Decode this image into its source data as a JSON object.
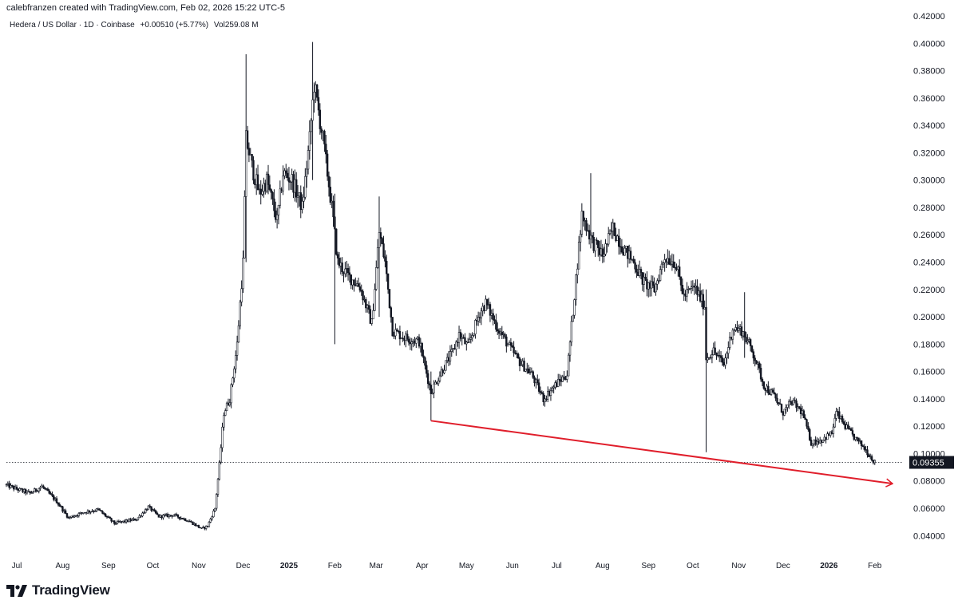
{
  "header": {
    "created_by": "calebfranzen created with TradingView.com, Feb 02, 2026 15:22 UTC-5"
  },
  "legend": {
    "symbol": "Hedera / US Dollar · 1D · Coinbase",
    "change": "+0.00510 (+5.77%)",
    "volume": "Vol259.08 M"
  },
  "brand": {
    "name": "TradingView",
    "icon": "tradingview-logo-icon"
  },
  "colors": {
    "candle": "#131722",
    "trendline": "#e01e2b",
    "last_price_bg": "#131722",
    "axis_text": "#131722"
  },
  "chart_data": {
    "type": "candlestick",
    "title": "Hedera / US Dollar · 1D · Coinbase",
    "ylim": [
      0.025,
      0.42
    ],
    "y_scale": "linear",
    "y_ticks": [
      "0.04000",
      "0.06000",
      "0.08000",
      "0.10000",
      "0.12000",
      "0.14000",
      "0.16000",
      "0.18000",
      "0.20000",
      "0.22000",
      "0.24000",
      "0.26000",
      "0.28000",
      "0.30000",
      "0.32000",
      "0.34000",
      "0.36000",
      "0.38000",
      "0.40000",
      "0.42000"
    ],
    "x_ticks": [
      {
        "label": "Jul",
        "date": "2024-07-01",
        "bold": false
      },
      {
        "label": "Aug",
        "date": "2024-08-01",
        "bold": false
      },
      {
        "label": "Sep",
        "date": "2024-09-01",
        "bold": false
      },
      {
        "label": "Oct",
        "date": "2024-10-01",
        "bold": false
      },
      {
        "label": "Nov",
        "date": "2024-11-01",
        "bold": false
      },
      {
        "label": "Dec",
        "date": "2024-12-01",
        "bold": false
      },
      {
        "label": "2025",
        "date": "2025-01-01",
        "bold": true
      },
      {
        "label": "Feb",
        "date": "2025-02-01",
        "bold": false
      },
      {
        "label": "Mar",
        "date": "2025-03-01",
        "bold": false
      },
      {
        "label": "Apr",
        "date": "2025-04-01",
        "bold": false
      },
      {
        "label": "May",
        "date": "2025-05-01",
        "bold": false
      },
      {
        "label": "Jun",
        "date": "2025-06-01",
        "bold": false
      },
      {
        "label": "Jul",
        "date": "2025-07-01",
        "bold": false
      },
      {
        "label": "Aug",
        "date": "2025-08-01",
        "bold": false
      },
      {
        "label": "Sep",
        "date": "2025-09-01",
        "bold": false
      },
      {
        "label": "Oct",
        "date": "2025-10-01",
        "bold": false
      },
      {
        "label": "Nov",
        "date": "2025-11-01",
        "bold": false
      },
      {
        "label": "Dec",
        "date": "2025-12-01",
        "bold": false
      },
      {
        "label": "2026",
        "date": "2026-01-01",
        "bold": true
      },
      {
        "label": "Feb",
        "date": "2026-02-01",
        "bold": false
      }
    ],
    "price_path": [
      [
        "2024-06-24",
        0.077
      ],
      [
        "2024-07-01",
        0.074
      ],
      [
        "2024-07-10",
        0.071
      ],
      [
        "2024-07-18",
        0.076
      ],
      [
        "2024-07-28",
        0.065
      ],
      [
        "2024-08-05",
        0.053
      ],
      [
        "2024-08-15",
        0.057
      ],
      [
        "2024-08-25",
        0.059
      ],
      [
        "2024-09-05",
        0.049
      ],
      [
        "2024-09-20",
        0.052
      ],
      [
        "2024-09-28",
        0.061
      ],
      [
        "2024-10-05",
        0.054
      ],
      [
        "2024-10-15",
        0.055
      ],
      [
        "2024-10-25",
        0.051
      ],
      [
        "2024-11-03",
        0.045
      ],
      [
        "2024-11-07",
        0.047
      ],
      [
        "2024-11-12",
        0.06
      ],
      [
        "2024-11-15",
        0.092
      ],
      [
        "2024-11-18",
        0.13
      ],
      [
        "2024-11-22",
        0.14
      ],
      [
        "2024-11-27",
        0.18
      ],
      [
        "2024-12-01",
        0.24
      ],
      [
        "2024-12-03",
        0.33
      ],
      [
        "2024-12-07",
        0.31
      ],
      [
        "2024-12-12",
        0.29
      ],
      [
        "2024-12-17",
        0.3
      ],
      [
        "2024-12-24",
        0.27
      ],
      [
        "2024-12-28",
        0.305
      ],
      [
        "2025-01-03",
        0.3
      ],
      [
        "2025-01-10",
        0.28
      ],
      [
        "2025-01-15",
        0.33
      ],
      [
        "2025-01-18",
        0.37
      ],
      [
        "2025-01-24",
        0.33
      ],
      [
        "2025-01-30",
        0.28
      ],
      [
        "2025-02-03",
        0.24
      ],
      [
        "2025-02-10",
        0.23
      ],
      [
        "2025-02-18",
        0.222
      ],
      [
        "2025-02-26",
        0.195
      ],
      [
        "2025-03-03",
        0.262
      ],
      [
        "2025-03-07",
        0.24
      ],
      [
        "2025-03-12",
        0.19
      ],
      [
        "2025-03-20",
        0.185
      ],
      [
        "2025-03-30",
        0.182
      ],
      [
        "2025-04-07",
        0.145
      ],
      [
        "2025-04-14",
        0.16
      ],
      [
        "2025-04-22",
        0.175
      ],
      [
        "2025-04-26",
        0.187
      ],
      [
        "2025-05-02",
        0.178
      ],
      [
        "2025-05-10",
        0.203
      ],
      [
        "2025-05-14",
        0.21
      ],
      [
        "2025-05-22",
        0.192
      ],
      [
        "2025-05-30",
        0.178
      ],
      [
        "2025-06-06",
        0.167
      ],
      [
        "2025-06-14",
        0.158
      ],
      [
        "2025-06-22",
        0.14
      ],
      [
        "2025-06-30",
        0.15
      ],
      [
        "2025-07-08",
        0.158
      ],
      [
        "2025-07-14",
        0.228
      ],
      [
        "2025-07-18",
        0.275
      ],
      [
        "2025-07-25",
        0.255
      ],
      [
        "2025-08-01",
        0.245
      ],
      [
        "2025-08-08",
        0.265
      ],
      [
        "2025-08-15",
        0.25
      ],
      [
        "2025-08-22",
        0.24
      ],
      [
        "2025-08-29",
        0.225
      ],
      [
        "2025-09-05",
        0.22
      ],
      [
        "2025-09-12",
        0.244
      ],
      [
        "2025-09-19",
        0.24
      ],
      [
        "2025-09-25",
        0.215
      ],
      [
        "2025-10-02",
        0.222
      ],
      [
        "2025-10-09",
        0.208
      ],
      [
        "2025-10-10",
        0.17
      ],
      [
        "2025-10-15",
        0.175
      ],
      [
        "2025-10-22",
        0.165
      ],
      [
        "2025-10-28",
        0.192
      ],
      [
        "2025-11-03",
        0.19
      ],
      [
        "2025-11-08",
        0.18
      ],
      [
        "2025-11-12",
        0.17
      ],
      [
        "2025-11-18",
        0.15
      ],
      [
        "2025-11-25",
        0.142
      ],
      [
        "2025-12-01",
        0.13
      ],
      [
        "2025-12-07",
        0.138
      ],
      [
        "2025-12-14",
        0.13
      ],
      [
        "2025-12-20",
        0.108
      ],
      [
        "2025-12-27",
        0.11
      ],
      [
        "2026-01-03",
        0.115
      ],
      [
        "2026-01-06",
        0.13
      ],
      [
        "2026-01-12",
        0.12
      ],
      [
        "2026-01-18",
        0.112
      ],
      [
        "2026-01-25",
        0.104
      ],
      [
        "2026-02-01",
        0.0935
      ]
    ],
    "spikes": [
      {
        "date": "2024-12-03",
        "high": 0.392,
        "low": 0.24
      },
      {
        "date": "2025-01-17",
        "high": 0.401,
        "low": 0.3
      },
      {
        "date": "2025-02-01",
        "high": 0.29,
        "low": 0.18
      },
      {
        "date": "2025-03-03",
        "high": 0.288,
        "low": 0.2
      },
      {
        "date": "2025-04-07",
        "high": 0.16,
        "low": 0.124
      },
      {
        "date": "2025-07-24",
        "high": 0.305,
        "low": 0.25
      },
      {
        "date": "2025-10-10",
        "high": 0.22,
        "low": 0.101
      },
      {
        "date": "2025-11-05",
        "high": 0.218,
        "low": 0.17
      }
    ],
    "last_price": 0.09355,
    "last_price_label": "0.09355",
    "trendline": {
      "start": {
        "date": "2025-04-07",
        "price": 0.124
      },
      "end": {
        "date": "2026-02-13",
        "price": 0.078
      }
    }
  }
}
